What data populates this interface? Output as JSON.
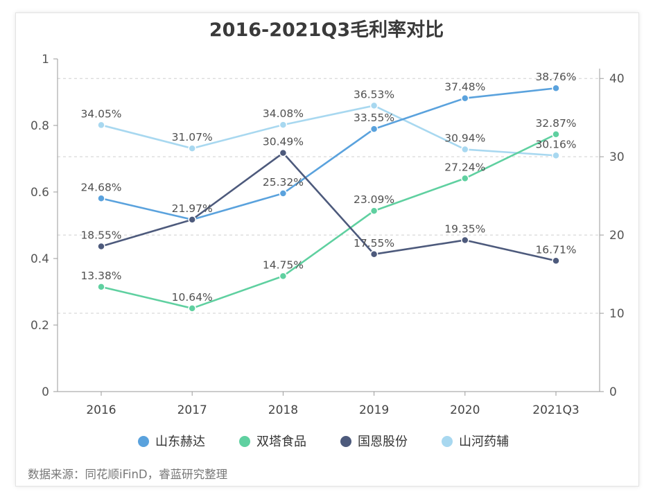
{
  "chart_data": {
    "type": "line",
    "title": "2016-2021Q3毛利率对比",
    "categories": [
      "2016",
      "2017",
      "2018",
      "2019",
      "2020",
      "2021Q3"
    ],
    "y_left": {
      "ticks": [
        "0",
        "0.2",
        "0.4",
        "0.6",
        "0.8",
        "1"
      ],
      "ylim": [
        0,
        1
      ]
    },
    "y_right": {
      "ticks": [
        "0",
        "10",
        "20",
        "30",
        "40"
      ],
      "ylim": [
        0,
        42.5
      ]
    },
    "grid": "dashed horizontal at right-axis ticks",
    "legend_position": "bottom",
    "series": [
      {
        "name": "山东赫达",
        "color": "#5aa2dd",
        "values": [
          24.68,
          21.97,
          25.32,
          33.55,
          37.48,
          38.76
        ],
        "labels": [
          "24.68%",
          "21.97%",
          "25.32%",
          "33.55%",
          "37.48%",
          "38.76%"
        ]
      },
      {
        "name": "双塔食品",
        "color": "#5fd0a0",
        "values": [
          13.38,
          10.64,
          14.75,
          23.09,
          27.24,
          32.87
        ],
        "labels": [
          "13.38%",
          "10.64%",
          "14.75%",
          "23.09%",
          "27.24%",
          "32.87%"
        ]
      },
      {
        "name": "国恩股份",
        "color": "#4d5a7c",
        "values": [
          18.55,
          21.97,
          30.49,
          17.55,
          19.35,
          16.71
        ],
        "labels": [
          "18.55%",
          "",
          "30.49%",
          "17.55%",
          "19.35%",
          "16.71%"
        ]
      },
      {
        "name": "山河药辅",
        "color": "#a8d8f0",
        "values": [
          34.05,
          31.07,
          34.08,
          36.53,
          30.94,
          30.16
        ],
        "labels": [
          "34.05%",
          "31.07%",
          "34.08%",
          "36.53%",
          "30.94%",
          "30.16%"
        ]
      }
    ],
    "source": "数据来源：同花顺iFinD，睿蓝研究整理"
  }
}
